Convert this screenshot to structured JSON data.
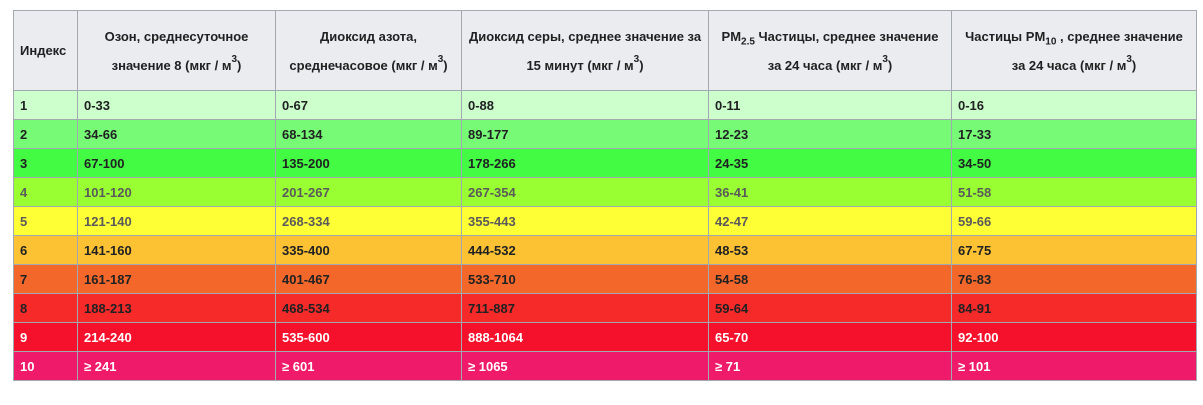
{
  "header": {
    "index": "Индекс",
    "ozone": {
      "text": "Озон, среднесуточное значение 8 (мкг / м",
      "sup": "3",
      "tail": ")"
    },
    "no2": {
      "text": "Диоксид азота, среднечасовое (мкг / м",
      "sup": "3",
      "tail": ")"
    },
    "so2": {
      "text": "Диоксид серы, среднее значение за 15 минут (мкг / м",
      "sup": "3",
      "tail": ")"
    },
    "pm25": {
      "pre": "PM",
      "sub": "2.5",
      "text": " Частицы, среднее значение за 24 часа (мкг / м",
      "sup": "3",
      "tail": ")"
    },
    "pm10": {
      "pre": "Частицы PM",
      "sub": "10",
      "text": " , среднее значение за 24 часа (мкг / м",
      "sup": "3",
      "tail": ")"
    }
  },
  "rows": [
    {
      "index": "1",
      "ozone": "0-33",
      "no2": "0-67",
      "so2": "0-88",
      "pm25": "0-11",
      "pm10": "0-16",
      "color": "#ccffcc",
      "text_style": "dark"
    },
    {
      "index": "2",
      "ozone": "34-66",
      "no2": "68-134",
      "so2": "89-177",
      "pm25": "12-23",
      "pm10": "17-33",
      "color": "#77fb77",
      "text_style": "dark"
    },
    {
      "index": "3",
      "ozone": "67-100",
      "no2": "135-200",
      "so2": "178-266",
      "pm25": "24-35",
      "pm10": "34-50",
      "color": "#44fb44",
      "text_style": "dark"
    },
    {
      "index": "4",
      "ozone": "101-120",
      "no2": "201-267",
      "so2": "267-354",
      "pm25": "36-41",
      "pm10": "51-58",
      "color": "#99ff33",
      "text_style": "light"
    },
    {
      "index": "5",
      "ozone": "121-140",
      "no2": "268-334",
      "so2": "355-443",
      "pm25": "42-47",
      "pm10": "59-66",
      "color": "#ffff35",
      "text_style": "light"
    },
    {
      "index": "6",
      "ozone": "141-160",
      "no2": "335-400",
      "so2": "444-532",
      "pm25": "48-53",
      "pm10": "67-75",
      "color": "#fdc233",
      "text_style": "dark"
    },
    {
      "index": "7",
      "ozone": "161-187",
      "no2": "401-467",
      "so2": "533-710",
      "pm25": "54-58",
      "pm10": "76-83",
      "color": "#f3682a",
      "text_style": "dark"
    },
    {
      "index": "8",
      "ozone": "188-213",
      "no2": "468-534",
      "so2": "711-887",
      "pm25": "59-64",
      "pm10": "84-91",
      "color": "#f72a2a",
      "text_style": "dark"
    },
    {
      "index": "9",
      "ozone": "214-240",
      "no2": "535-600",
      "so2": "888-1064",
      "pm25": "65-70",
      "pm10": "92-100",
      "color": "#f5112c",
      "text_style": "white"
    },
    {
      "index": "10",
      "ozone": "≥ 241",
      "no2": "≥ 601",
      "so2": "≥ 1065",
      "pm25": "≥ 71",
      "pm10": "≥ 101",
      "color": "#f01a6a",
      "text_style": "white"
    }
  ]
}
